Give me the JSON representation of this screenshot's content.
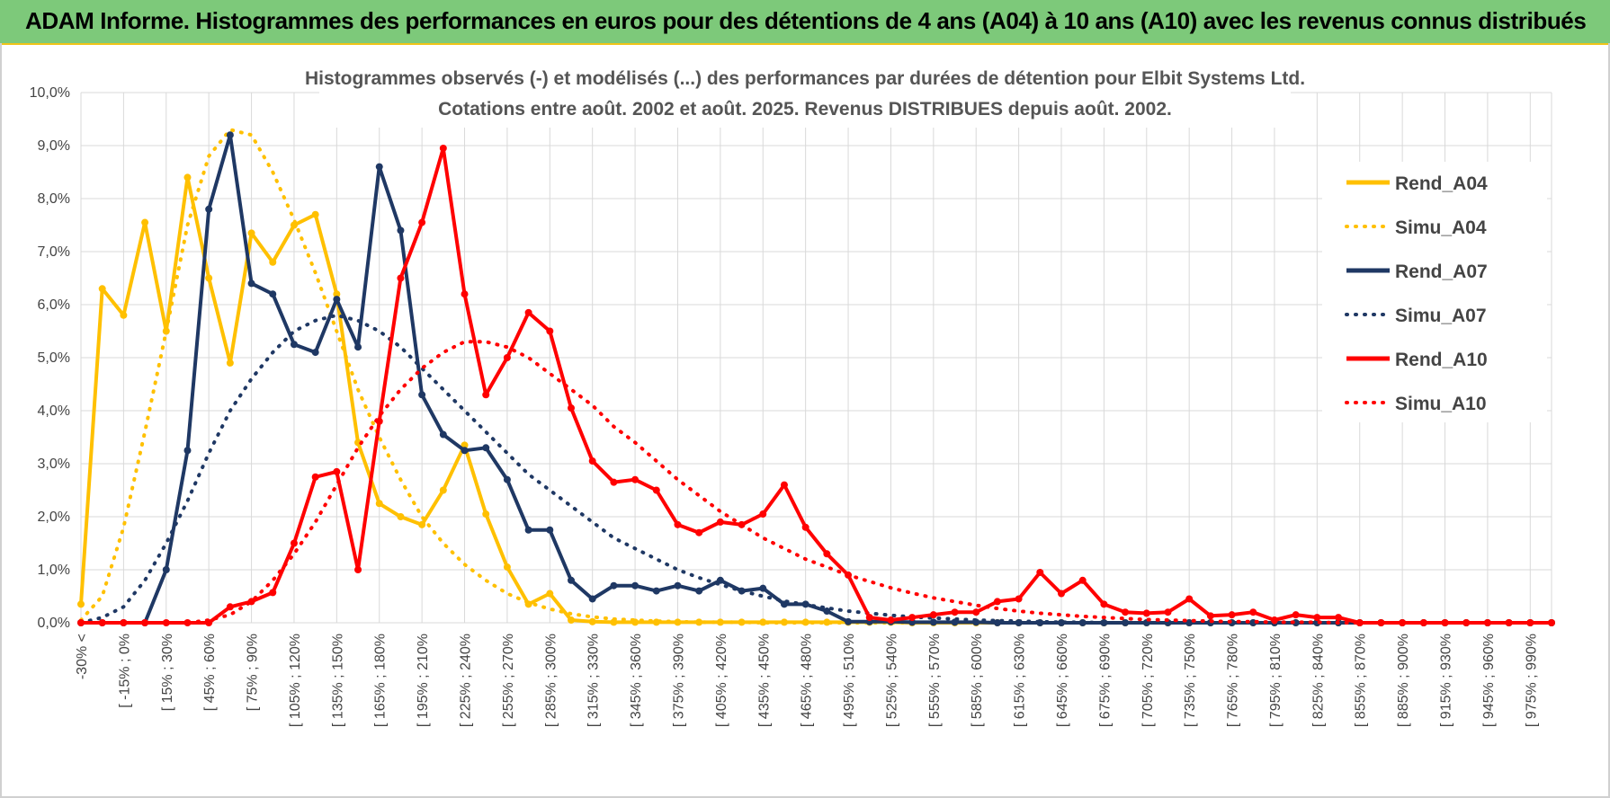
{
  "header": {
    "title": "ADAM Informe. Histogrammes des performances en euros pour des détentions de 4 ans (A04) à 10 ans (A10) avec les revenus connus distribués"
  },
  "chart_data": {
    "type": "line",
    "title_line1": "Histogrammes observés (-) et modélisés (...) des performances par durées de détention pour Elbit Systems Ltd.",
    "title_line2": "Cotations entre août. 2002 et août. 2025.  Revenus DISTRIBUES depuis août. 2002.",
    "y_ticks": [
      "0,0%",
      "1,0%",
      "2,0%",
      "3,0%",
      "4,0%",
      "5,0%",
      "6,0%",
      "7,0%",
      "8,0%",
      "9,0%",
      "10,0%"
    ],
    "ylim": [
      0,
      10
    ],
    "grid": true,
    "legend_position": "right",
    "x_labels": [
      "-30% <",
      "[ -15% ; 0%",
      "[ 15% ; 30%",
      "[ 45% ; 60%",
      "[ 75% ; 90%",
      "[ 105% ; 120%",
      "[ 135% ; 150%",
      "[ 165% ; 180%",
      "[ 195% ; 210%",
      "[ 225% ; 240%",
      "[ 255% ; 270%",
      "[ 285% ; 300%",
      "[ 315% ; 330%",
      "[ 345% ; 360%",
      "[ 375% ; 390%",
      "[ 405% ; 420%",
      "[ 435% ; 450%",
      "[ 465% ; 480%",
      "[ 495% ; 510%",
      "[ 525% ; 540%",
      "[ 555% ; 570%",
      "[ 585% ; 600%",
      "[ 615% ; 630%",
      "[ 645% ; 660%",
      "[ 675% ; 690%",
      "[ 705% ; 720%",
      "[ 735% ; 750%",
      "[ 765% ; 780%",
      "[ 795% ; 810%",
      "[ 825% ; 840%",
      "[ 855% ; 870%",
      "[ 885% ; 900%",
      "[ 915% ; 930%",
      "[ 945% ; 960%",
      "[ 975% ; 990%"
    ],
    "series": [
      {
        "name": "Rend_A04",
        "style": "solid",
        "color": "#ffc000",
        "values": [
          0.35,
          6.3,
          5.8,
          7.55,
          5.5,
          8.4,
          6.5,
          4.9,
          7.35,
          6.8,
          7.5,
          7.7,
          6.2,
          3.4,
          2.25,
          2.0,
          1.85,
          2.5,
          3.35,
          2.05,
          1.05,
          0.35,
          0.55,
          0.05,
          0.02,
          0.01,
          0.01,
          0.01,
          0.01,
          0.01,
          0.01,
          0.01,
          0.01,
          0.01,
          0.01,
          0.01,
          0.01,
          0.01,
          0.01,
          0,
          0,
          0,
          0,
          0,
          0,
          0,
          0,
          0,
          0,
          0,
          0,
          0,
          0,
          0,
          0,
          0,
          0,
          0,
          0,
          0,
          0,
          0,
          0,
          0,
          0,
          0,
          0,
          0,
          0,
          0
        ]
      },
      {
        "name": "Simu_A04",
        "style": "dotted",
        "color": "#ffc000",
        "values": [
          0.05,
          0.5,
          1.8,
          3.6,
          5.5,
          7.5,
          8.8,
          9.3,
          9.2,
          8.5,
          7.6,
          6.6,
          5.5,
          4.4,
          3.5,
          2.7,
          2.0,
          1.5,
          1.1,
          0.8,
          0.55,
          0.38,
          0.26,
          0.17,
          0.11,
          0.07,
          0.05,
          0.03,
          0.02,
          0.01,
          0.01,
          0.01,
          0,
          0,
          0,
          0,
          0,
          0,
          0,
          0,
          0,
          0,
          0,
          0,
          0,
          0,
          0,
          0,
          0,
          0,
          0,
          0,
          0,
          0,
          0,
          0,
          0,
          0,
          0,
          0,
          0,
          0,
          0,
          0,
          0,
          0,
          0,
          0,
          0,
          0
        ]
      },
      {
        "name": "Rend_A07",
        "style": "solid",
        "color": "#1f3864",
        "values": [
          0,
          0,
          0,
          0,
          1.0,
          3.25,
          7.8,
          9.2,
          6.4,
          6.2,
          5.25,
          5.1,
          6.1,
          5.2,
          8.6,
          7.4,
          4.3,
          3.55,
          3.25,
          3.3,
          2.7,
          1.75,
          1.75,
          0.8,
          0.45,
          0.7,
          0.7,
          0.6,
          0.7,
          0.6,
          0.8,
          0.6,
          0.65,
          0.35,
          0.35,
          0.22,
          0.02,
          0.02,
          0.02,
          0.01,
          0.01,
          0.01,
          0.01,
          0,
          0,
          0,
          0,
          0,
          0,
          0,
          0,
          0,
          0,
          0,
          0,
          0,
          0,
          0,
          0,
          0,
          0,
          0,
          0,
          0,
          0,
          0,
          0,
          0,
          0,
          0
        ]
      },
      {
        "name": "Simu_A07",
        "style": "dotted",
        "color": "#1f3864",
        "values": [
          0,
          0.1,
          0.3,
          0.8,
          1.5,
          2.3,
          3.2,
          4.0,
          4.6,
          5.1,
          5.5,
          5.7,
          5.8,
          5.7,
          5.5,
          5.2,
          4.8,
          4.4,
          4.0,
          3.6,
          3.2,
          2.8,
          2.5,
          2.2,
          1.9,
          1.6,
          1.4,
          1.2,
          1.0,
          0.85,
          0.72,
          0.6,
          0.5,
          0.41,
          0.34,
          0.28,
          0.22,
          0.18,
          0.14,
          0.11,
          0.09,
          0.07,
          0.05,
          0.04,
          0.03,
          0.02,
          0.01,
          0.01,
          0,
          0,
          0,
          0,
          0,
          0,
          0,
          0,
          0,
          0,
          0,
          0,
          0,
          0,
          0,
          0,
          0,
          0,
          0,
          0,
          0,
          0
        ]
      },
      {
        "name": "Rend_A10",
        "style": "solid",
        "color": "#ff0000",
        "values": [
          0,
          0,
          0,
          0,
          0,
          0,
          0,
          0.3,
          0.4,
          0.57,
          1.5,
          2.75,
          2.85,
          1.0,
          3.8,
          6.5,
          7.55,
          8.95,
          6.2,
          4.3,
          5.0,
          5.85,
          5.5,
          4.05,
          3.05,
          2.65,
          2.7,
          2.5,
          1.85,
          1.7,
          1.9,
          1.85,
          2.05,
          2.6,
          1.8,
          1.3,
          0.9,
          0.1,
          0.05,
          0.1,
          0.15,
          0.2,
          0.2,
          0.4,
          0.45,
          0.95,
          0.55,
          0.8,
          0.35,
          0.2,
          0.18,
          0.2,
          0.45,
          0.13,
          0.15,
          0.2,
          0.05,
          0.15,
          0.1,
          0.1,
          0,
          0,
          0,
          0,
          0,
          0,
          0,
          0,
          0,
          0
        ]
      },
      {
        "name": "Simu_A10",
        "style": "dotted",
        "color": "#ff0000",
        "values": [
          0,
          0,
          0,
          0,
          0,
          0,
          0.05,
          0.15,
          0.4,
          0.8,
          1.3,
          1.9,
          2.6,
          3.3,
          3.9,
          4.4,
          4.8,
          5.1,
          5.3,
          5.3,
          5.2,
          5.0,
          4.7,
          4.4,
          4.1,
          3.7,
          3.4,
          3.05,
          2.7,
          2.4,
          2.1,
          1.85,
          1.6,
          1.4,
          1.2,
          1.05,
          0.9,
          0.78,
          0.66,
          0.56,
          0.47,
          0.4,
          0.33,
          0.27,
          0.22,
          0.18,
          0.15,
          0.12,
          0.1,
          0.08,
          0.06,
          0.05,
          0.04,
          0.03,
          0.02,
          0.02,
          0.01,
          0.01,
          0.01,
          0,
          0,
          0,
          0,
          0,
          0,
          0,
          0,
          0,
          0,
          0
        ]
      }
    ]
  }
}
